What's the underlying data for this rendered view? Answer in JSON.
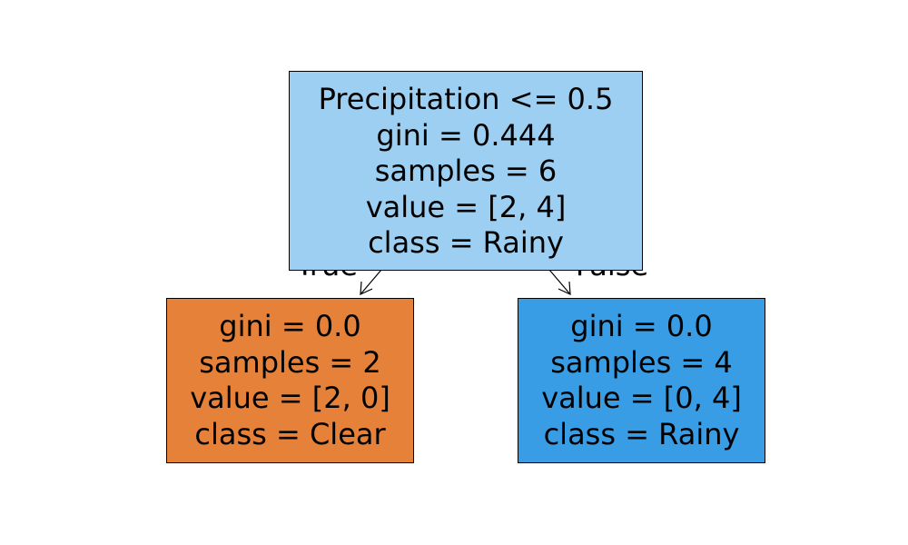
{
  "tree": {
    "edges": {
      "left_label": "True",
      "right_label": "False"
    },
    "root": {
      "split": "Precipitation <= 0.5",
      "gini": "gini = 0.444",
      "samples": "samples = 6",
      "value": "value = [2, 4]",
      "class": "class = Rainy",
      "fill": "#9ccff2"
    },
    "left": {
      "gini": "gini = 0.0",
      "samples": "samples = 2",
      "value": "value = [2, 0]",
      "class": "class = Clear",
      "fill": "#e58139"
    },
    "right": {
      "gini": "gini = 0.0",
      "samples": "samples = 4",
      "value": "value = [0, 4]",
      "class": "class = Rainy",
      "fill": "#399de5"
    }
  }
}
